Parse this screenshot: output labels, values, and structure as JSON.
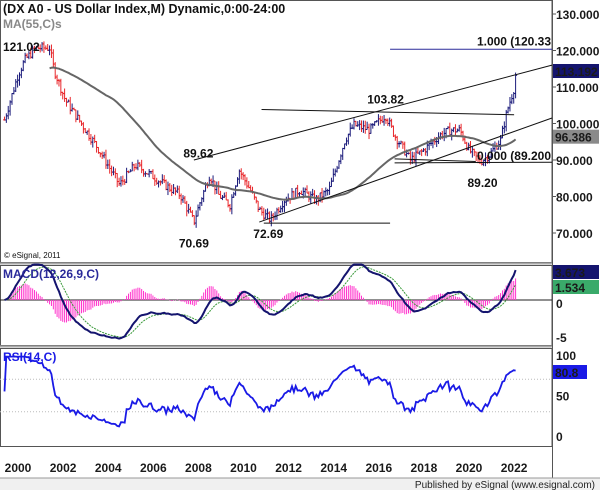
{
  "header": {
    "title": "(DX A0 - US Dollar Index,M) Dynamic,0:00-24:00",
    "ma_label": "MA(55,C)s",
    "copyright": "© eSignal, 2011"
  },
  "footer": {
    "published": "Published by eSignal (www.esignal.com)"
  },
  "colors": {
    "up_bar": "#1a1a7a",
    "down_bar": "#e8262a",
    "ma": "#666666",
    "macd": "#14146e",
    "signal": "#3a9a3a",
    "histogram": "#ff33cc",
    "rsi": "#1a1ae6",
    "fib": "#2b2b9a"
  },
  "chart_data": [
    {
      "type": "ohlc",
      "panel": "price",
      "x_unit": "year",
      "x_ticks": [
        "2000",
        "2002",
        "2004",
        "2006",
        "2008",
        "2010",
        "2012",
        "2014",
        "2016",
        "2018",
        "2020",
        "2022"
      ],
      "y_ticks": [
        "130.000",
        "120.000",
        "110.000",
        "100.000",
        "90.000",
        "80.000",
        "70.000"
      ],
      "ylim": [
        64,
        134
      ],
      "close_path": [
        [
          1999.4,
          101
        ],
        [
          2000.0,
          113.3
        ],
        [
          2000.3,
          117.4
        ],
        [
          2000.8,
          120.7
        ],
        [
          2001.4,
          120.7
        ],
        [
          2001.6,
          114.7
        ],
        [
          2002.1,
          106.4
        ],
        [
          2002.7,
          101
        ],
        [
          2003.6,
          92.7
        ],
        [
          2004.5,
          83.2
        ],
        [
          2005.2,
          88.6
        ],
        [
          2005.9,
          85.9
        ],
        [
          2006.5,
          83.2
        ],
        [
          2007.2,
          80.4
        ],
        [
          2007.8,
          73
        ],
        [
          2008.1,
          79
        ],
        [
          2008.5,
          85.9
        ],
        [
          2008.9,
          80.4
        ],
        [
          2009.4,
          77.7
        ],
        [
          2009.8,
          87.3
        ],
        [
          2010.3,
          81.8
        ],
        [
          2010.7,
          76.3
        ],
        [
          2011.2,
          73.6
        ],
        [
          2011.8,
          79
        ],
        [
          2012.5,
          81.8
        ],
        [
          2013.2,
          79
        ],
        [
          2013.8,
          81.8
        ],
        [
          2014.5,
          95.5
        ],
        [
          2014.9,
          99.6
        ],
        [
          2015.6,
          98.2
        ],
        [
          2016.3,
          102.3
        ],
        [
          2016.7,
          96.8
        ],
        [
          2017.4,
          90
        ],
        [
          2018.0,
          92.7
        ],
        [
          2018.7,
          96.8
        ],
        [
          2019.2,
          98.2
        ],
        [
          2019.6,
          98.2
        ],
        [
          2020.0,
          92.7
        ],
        [
          2020.5,
          89.5
        ],
        [
          2020.9,
          91.4
        ],
        [
          2021.4,
          95.5
        ],
        [
          2021.7,
          103.7
        ],
        [
          2022.0,
          109.7
        ],
        [
          2022.1,
          113
        ]
      ],
      "moving_average": {
        "label": "MA(55,C)s",
        "period": 55
      },
      "last_price": "113.192",
      "ma_value": "96.386",
      "annotations": [
        {
          "text": "121.02",
          "x": 2000.9,
          "y": 121.02
        },
        {
          "text": "70.69",
          "x": 2007.8,
          "y": 70.69
        },
        {
          "text": "72.69",
          "x": 2011.1,
          "y": 72.69
        },
        {
          "text": "89.62",
          "x": 2008.0,
          "y": 89.62
        },
        {
          "text": "103.82",
          "x": 2016.3,
          "y": 103.82
        },
        {
          "text": "89.20",
          "x": 2020.6,
          "y": 89.2
        },
        {
          "text": "1.000 (120.33",
          "x": 2022.5,
          "y": 120.33
        },
        {
          "text": "0.000 (89.200",
          "x": 2020.6,
          "y": 89.2
        }
      ],
      "trendlines": [
        {
          "from": [
            2007.8,
            90.0
          ],
          "to": [
            2023.7,
            116.0
          ]
        },
        {
          "from": [
            2010.7,
            73.0
          ],
          "to": [
            2023.7,
            101.5
          ]
        },
        {
          "from": [
            2010.8,
            103.82
          ],
          "to": [
            2022.0,
            102.4
          ]
        },
        {
          "from": [
            2010.9,
            72.69
          ],
          "to": [
            2016.5,
            72.69
          ]
        },
        {
          "from": [
            2016.7,
            89.2
          ],
          "to": [
            2023.7,
            89.4
          ]
        },
        {
          "from": [
            2016.7,
            90.3
          ],
          "to": [
            2020.3,
            89.6
          ]
        }
      ],
      "fib_levels": [
        {
          "ratio": "1.000",
          "value": 120.33
        },
        {
          "ratio": "0.000",
          "value": 89.2
        }
      ]
    },
    {
      "type": "line",
      "panel": "macd",
      "label": "MACD(12,26,9,C)",
      "y_ticks": [
        "0",
        "-5"
      ],
      "ylim": [
        -6.2,
        5
      ],
      "macd_value": "3.673",
      "signal_value": "1.534"
    },
    {
      "type": "line",
      "panel": "rsi",
      "label": "RSI(14,C)",
      "y_ticks": [
        "100",
        "50",
        "0"
      ],
      "ylim": [
        -2,
        106
      ],
      "guides": [
        30,
        70
      ],
      "value": "80.8"
    }
  ]
}
